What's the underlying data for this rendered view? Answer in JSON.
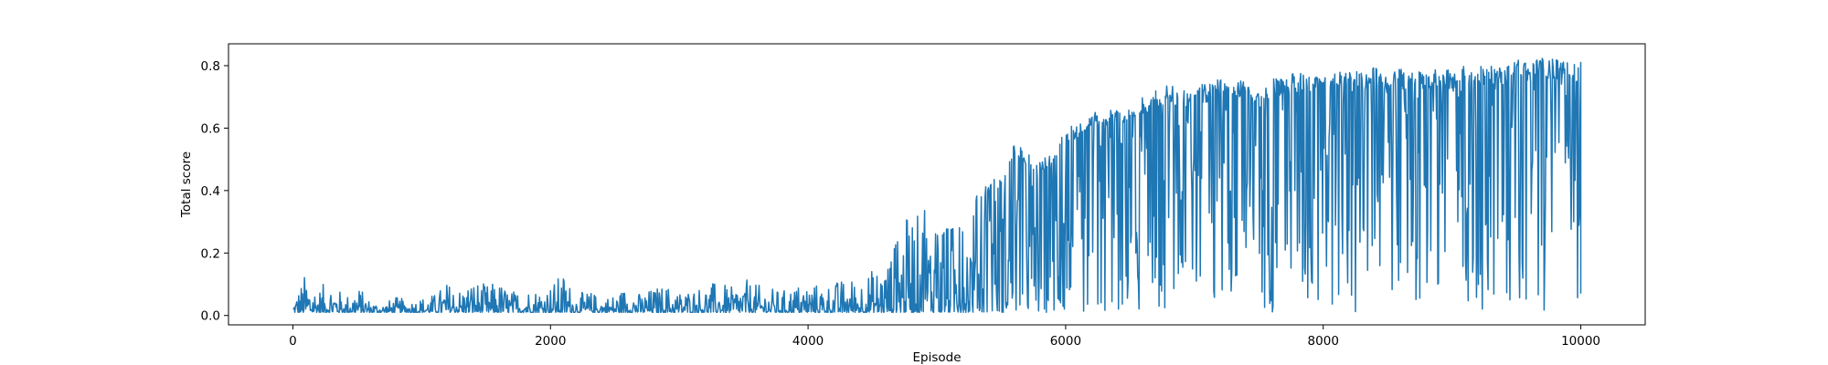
{
  "chart_data": {
    "type": "line",
    "title": "",
    "xlabel": "Episode",
    "ylabel": "Total score",
    "xlim": [
      -500,
      10500
    ],
    "ylim": [
      -0.03,
      0.87
    ],
    "xticks": [
      0,
      2000,
      4000,
      6000,
      8000,
      10000
    ],
    "yticks": [
      0.0,
      0.2,
      0.4,
      0.6,
      0.8
    ],
    "xtick_labels": [
      "0",
      "2000",
      "4000",
      "6000",
      "8000",
      "10000"
    ],
    "ytick_labels": [
      "0.0",
      "0.2",
      "0.4",
      "0.6",
      "0.8"
    ],
    "grid": false,
    "legend": "none",
    "series": [
      {
        "color": "#1f77b4",
        "x": [
          0,
          100,
          200,
          300,
          400,
          500,
          600,
          700,
          800,
          900,
          1000,
          1100,
          1200,
          1300,
          1400,
          1500,
          1600,
          1700,
          1800,
          1900,
          2000,
          2100,
          2200,
          2300,
          2400,
          2500,
          2600,
          2700,
          2800,
          2900,
          3000,
          3100,
          3200,
          3300,
          3400,
          3500,
          3600,
          3700,
          3800,
          3900,
          4000,
          4100,
          4200,
          4300,
          4400,
          4500,
          4600,
          4700,
          4800,
          4900,
          5000,
          5100,
          5200,
          5300,
          5400,
          5500,
          5600,
          5700,
          5800,
          5900,
          6000,
          6100,
          6200,
          6300,
          6400,
          6500,
          6600,
          6700,
          6800,
          6900,
          7000,
          7100,
          7200,
          7300,
          7400,
          7500,
          7600,
          7700,
          7800,
          7900,
          8000,
          8100,
          8200,
          8300,
          8400,
          8500,
          8600,
          8700,
          8800,
          8900,
          9000,
          9100,
          9200,
          9300,
          9400,
          9500,
          9600,
          9700,
          9800,
          9900,
          10000
        ],
        "y_min": [
          0.01,
          0.01,
          0.01,
          0.01,
          0.01,
          0.01,
          0.01,
          0.01,
          0.01,
          0.01,
          0.01,
          0.01,
          0.01,
          0.01,
          0.01,
          0.01,
          0.01,
          0.01,
          0.01,
          0.01,
          0.01,
          0.01,
          0.01,
          0.01,
          0.01,
          0.01,
          0.01,
          0.01,
          0.01,
          0.01,
          0.01,
          0.01,
          0.01,
          0.01,
          0.01,
          0.01,
          0.01,
          0.01,
          0.01,
          0.01,
          0.01,
          0.01,
          0.01,
          0.01,
          0.01,
          0.01,
          0.01,
          0.01,
          0.01,
          0.01,
          0.01,
          0.01,
          0.01,
          0.01,
          0.01,
          0.01,
          0.01,
          0.01,
          0.01,
          0.01,
          0.01,
          0.01,
          0.01,
          0.01,
          0.01,
          0.01,
          0.01,
          0.01,
          0.01,
          0.01,
          0.01,
          0.01,
          0.01,
          0.01,
          0.01,
          0.01,
          0.01,
          0.01,
          0.01,
          0.01,
          0.01,
          0.01,
          0.01,
          0.01,
          0.01,
          0.01,
          0.01,
          0.01,
          0.01,
          0.01,
          0.01,
          0.01,
          0.01,
          0.01,
          0.01,
          0.01,
          0.01,
          0.01,
          0.01,
          0.01,
          0.07
        ],
        "y_max": [
          0.05,
          0.14,
          0.09,
          0.12,
          0.06,
          0.1,
          0.05,
          0.04,
          0.06,
          0.05,
          0.06,
          0.07,
          0.11,
          0.09,
          0.12,
          0.1,
          0.11,
          0.08,
          0.09,
          0.09,
          0.1,
          0.14,
          0.07,
          0.08,
          0.06,
          0.07,
          0.1,
          0.07,
          0.09,
          0.1,
          0.08,
          0.09,
          0.1,
          0.11,
          0.09,
          0.12,
          0.1,
          0.09,
          0.08,
          0.1,
          0.11,
          0.1,
          0.11,
          0.12,
          0.13,
          0.15,
          0.18,
          0.25,
          0.35,
          0.34,
          0.26,
          0.3,
          0.28,
          0.38,
          0.42,
          0.46,
          0.56,
          0.52,
          0.5,
          0.52,
          0.6,
          0.62,
          0.66,
          0.65,
          0.67,
          0.66,
          0.7,
          0.72,
          0.74,
          0.72,
          0.74,
          0.74,
          0.76,
          0.75,
          0.77,
          0.72,
          0.76,
          0.76,
          0.79,
          0.77,
          0.77,
          0.78,
          0.79,
          0.78,
          0.8,
          0.77,
          0.79,
          0.78,
          0.79,
          0.79,
          0.79,
          0.8,
          0.8,
          0.8,
          0.8,
          0.82,
          0.81,
          0.83,
          0.82,
          0.81,
          0.81
        ]
      }
    ]
  }
}
